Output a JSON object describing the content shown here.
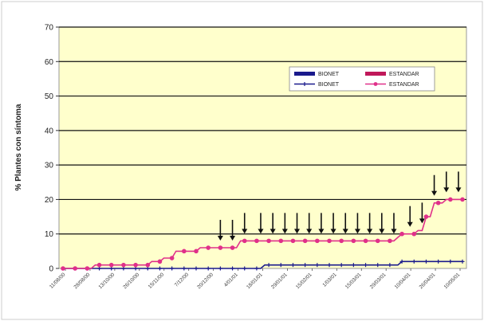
{
  "chart_data": {
    "type": "line",
    "ylabel": "% Plantes con síntoma",
    "ylim": [
      0,
      70
    ],
    "yticks": [
      0,
      10,
      20,
      30,
      40,
      50,
      60,
      70
    ],
    "grid": true,
    "legend_position": "top-right",
    "background_color": "#ffffcc",
    "x_tick_labels": [
      "11/08/00",
      "28/08/00",
      "13/10/00",
      "26/10/00",
      "15/11/00",
      "7/12/00",
      "20/12/00",
      "4/01/01",
      "18/01/01",
      "29/01/01",
      "15/02/01",
      "1/03/01",
      "15/03/01",
      "29/03/01",
      "10/04/01",
      "26/04/01",
      "10/05/01"
    ],
    "legend": [
      {
        "label": "BIONET",
        "kind": "bar",
        "color": "#1a1a8c"
      },
      {
        "label": "ESTANDAR",
        "kind": "bar",
        "color": "#c0185a"
      },
      {
        "label": "BIONET",
        "kind": "line",
        "color": "#1a1a8c"
      },
      {
        "label": "ESTANDAR",
        "kind": "line",
        "color": "#e0308a"
      }
    ],
    "series": [
      {
        "name": "BIONET",
        "color": "#1a1a8c",
        "marker": "plus",
        "values": [
          0,
          0,
          0,
          0,
          0,
          0,
          0,
          0,
          0,
          0,
          0,
          0,
          0,
          0,
          0,
          0,
          0,
          0,
          0,
          0,
          0,
          0,
          0,
          0,
          0,
          0,
          0,
          0,
          0,
          0,
          0,
          0,
          0,
          0,
          0,
          0,
          0,
          0,
          0,
          0,
          0,
          0,
          0,
          0,
          0,
          0,
          0,
          0,
          0,
          0,
          1,
          1,
          1,
          1,
          1,
          1,
          1,
          1,
          1,
          1,
          1,
          1,
          1,
          1,
          1,
          1,
          1,
          1,
          1,
          1,
          1,
          1,
          1,
          1,
          1,
          1,
          1,
          1,
          1,
          1,
          1,
          1,
          1,
          1,
          2,
          2,
          2,
          2,
          2,
          2,
          2,
          2,
          2,
          2,
          2,
          2,
          2,
          2,
          2,
          2
        ]
      },
      {
        "name": "ESTANDAR",
        "color": "#e0308a",
        "marker": "circle",
        "values": [
          0,
          0,
          0,
          0,
          0,
          0,
          0,
          0,
          1,
          1,
          1,
          1,
          1,
          1,
          1,
          1,
          1,
          1,
          1,
          1,
          1,
          1,
          2,
          2,
          2,
          3,
          3,
          3,
          5,
          5,
          5,
          5,
          5,
          5,
          6,
          6,
          6,
          6,
          6,
          6,
          6,
          6,
          6,
          6,
          8,
          8,
          8,
          8,
          8,
          8,
          8,
          8,
          8,
          8,
          8,
          8,
          8,
          8,
          8,
          8,
          8,
          8,
          8,
          8,
          8,
          8,
          8,
          8,
          8,
          8,
          8,
          8,
          8,
          8,
          8,
          8,
          8,
          8,
          8,
          8,
          8,
          8,
          8,
          9,
          10,
          10,
          10,
          10,
          11,
          11,
          15,
          15,
          19,
          19,
          19,
          20,
          20,
          20,
          20,
          20
        ]
      }
    ]
  }
}
